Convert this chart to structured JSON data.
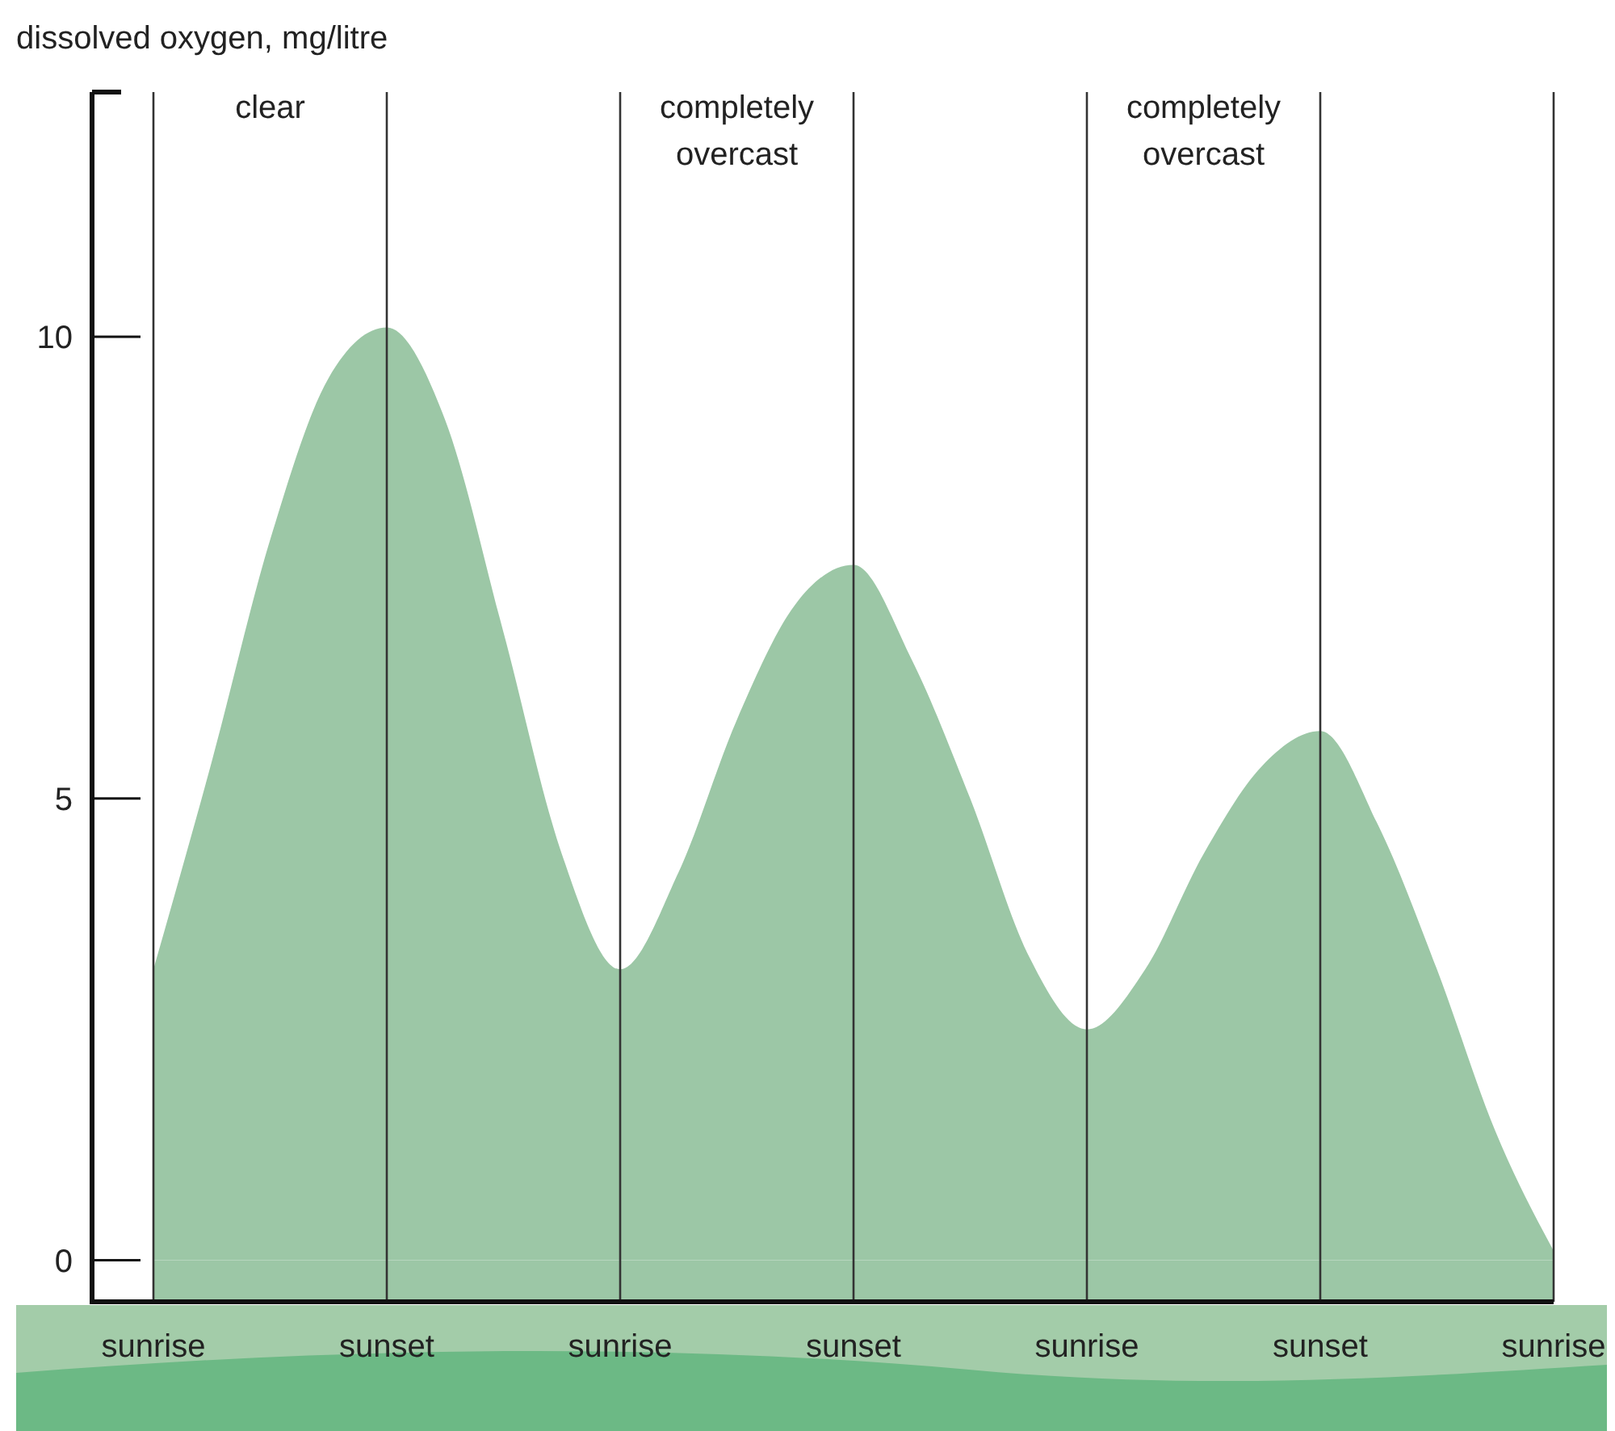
{
  "chart_data": {
    "type": "area",
    "ylabel": "dissolved oxygen, mg/litre",
    "categories": [
      "sunrise",
      null,
      null,
      null,
      "sunset",
      null,
      null,
      null,
      "sunrise",
      null,
      null,
      null,
      "sunset",
      null,
      null,
      null,
      "sunrise",
      null,
      null,
      null,
      "sunset",
      null,
      null,
      null,
      "sunrise"
    ],
    "series": [
      {
        "color": "#9cc7a6",
        "values": [
          3.15,
          5.4,
          7.8,
          9.55,
          10.1,
          9.1,
          6.8,
          4.4,
          3.15,
          4.2,
          5.85,
          7.1,
          7.53,
          6.5,
          5.0,
          3.3,
          2.5,
          3.15,
          4.4,
          5.35,
          5.73,
          4.7,
          3.15,
          1.4,
          0.1
        ]
      }
    ],
    "ylim": [
      -0.45,
      12.65
    ],
    "yticks": [
      0,
      5,
      10
    ],
    "grid": "x",
    "annotations": [
      "clear",
      "completely overcast",
      "completely overcast"
    ]
  }
}
